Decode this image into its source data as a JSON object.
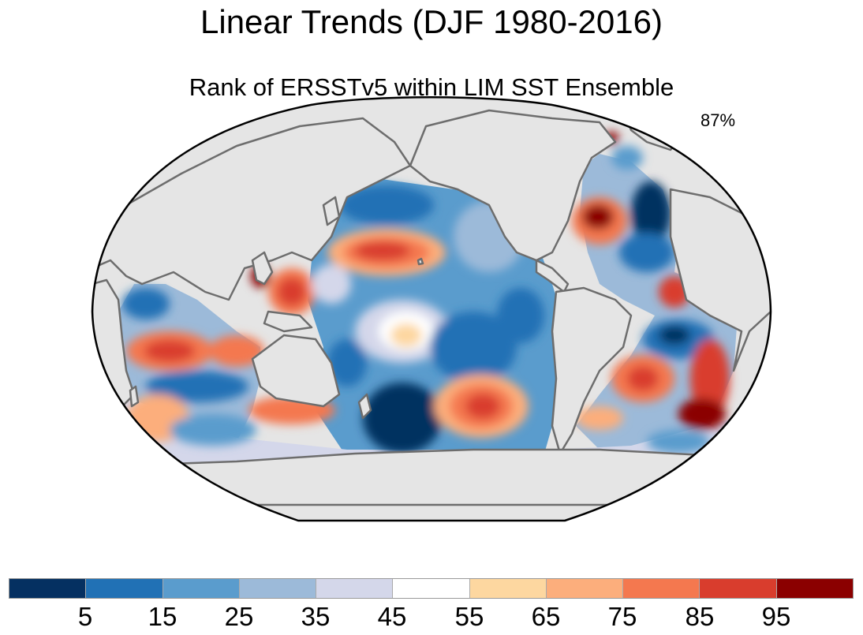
{
  "title": "Linear Trends (DJF 1980-2016)",
  "subtitle": "Rank of ERSSTv5 within LIM SST Ensemble",
  "percent_label": "87%",
  "colorbar": {
    "colors": [
      "#053061",
      "#2171b5",
      "#5a9ccd",
      "#9cbad9",
      "#d4d7ea",
      "#ffffff",
      "#fdd7a0",
      "#fcae7c",
      "#f4784f",
      "#d93d2d",
      "#8b0000"
    ],
    "tick_labels": [
      "5",
      "15",
      "25",
      "35",
      "45",
      "55",
      "65",
      "75",
      "85",
      "95"
    ]
  }
}
